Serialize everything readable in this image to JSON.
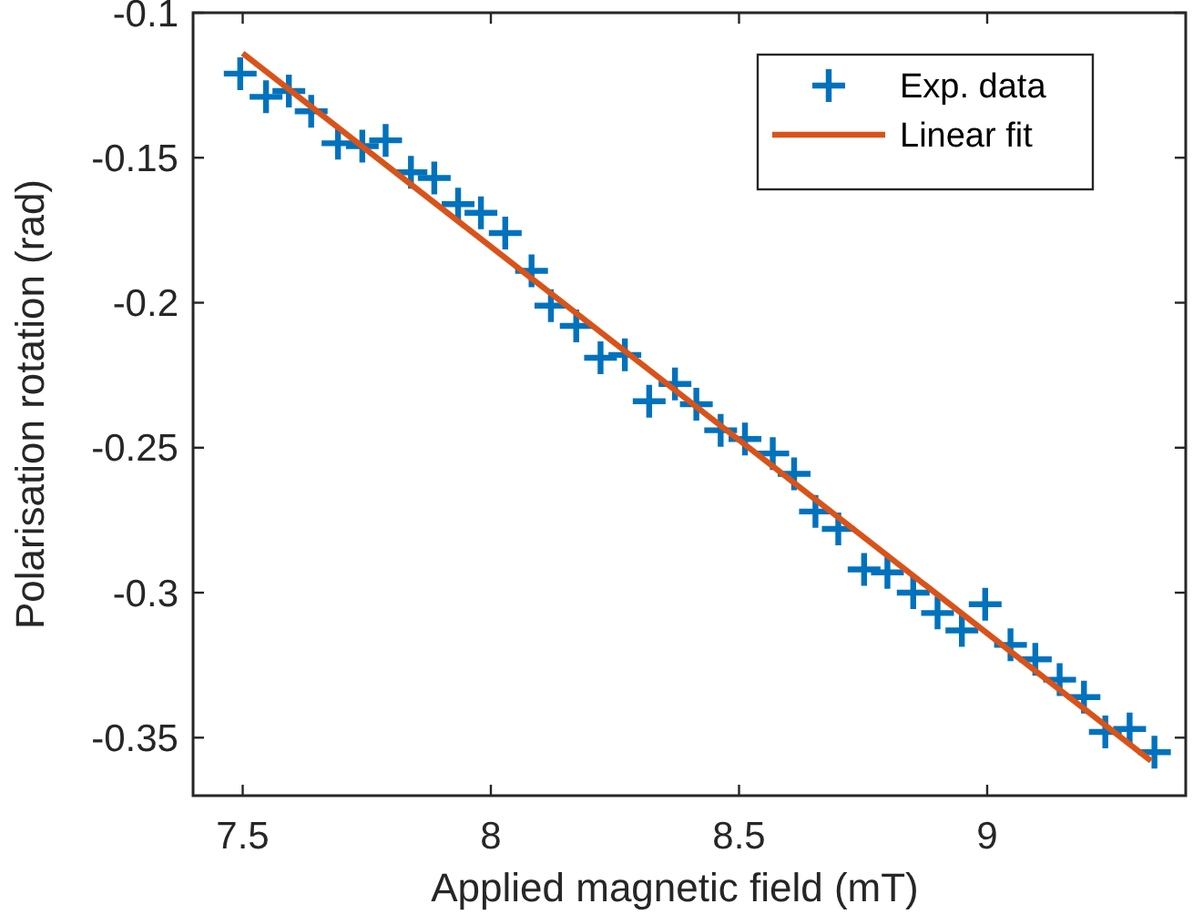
{
  "chart_data": {
    "type": "scatter",
    "xlabel": "Applied magnetic field (mT)",
    "ylabel": "Polarisation rotation (rad)",
    "xlim": [
      7.4,
      9.4
    ],
    "xticks": [
      7.5,
      8,
      8.5,
      9
    ],
    "ylim": [
      -0.37,
      -0.1
    ],
    "yticks": [
      -0.35,
      -0.3,
      -0.25,
      -0.2,
      -0.15,
      -0.1
    ],
    "marker": "cross",
    "grid": false,
    "legend": "top right",
    "series": [
      {
        "name": "Exp. data",
        "color": "#0072bd",
        "x": [
          7.495,
          7.547,
          7.593,
          7.638,
          7.692,
          7.741,
          7.788,
          7.839,
          7.886,
          7.934,
          7.98,
          8.029,
          8.082,
          8.121,
          8.172,
          8.221,
          8.27,
          8.319,
          8.371,
          8.414,
          8.463,
          8.512,
          8.568,
          8.611,
          8.654,
          8.7,
          8.752,
          8.799,
          8.851,
          8.9,
          8.949,
          8.996,
          9.047,
          9.097,
          9.146,
          9.195,
          9.238,
          9.287,
          9.337
        ],
        "values": [
          -0.121,
          -0.129,
          -0.127,
          -0.134,
          -0.145,
          -0.146,
          -0.144,
          -0.155,
          -0.157,
          -0.166,
          -0.169,
          -0.176,
          -0.189,
          -0.201,
          -0.208,
          -0.219,
          -0.218,
          -0.234,
          -0.228,
          -0.235,
          -0.244,
          -0.247,
          -0.252,
          -0.259,
          -0.272,
          -0.278,
          -0.292,
          -0.293,
          -0.3,
          -0.307,
          -0.313,
          -0.304,
          -0.318,
          -0.323,
          -0.33,
          -0.336,
          -0.348,
          -0.347,
          -0.355
        ]
      },
      {
        "name": "Linear fit",
        "type": "line",
        "color": "#d95319",
        "marker": "none",
        "line_style": "solid",
        "x": [
          7.5,
          9.33
        ],
        "values": [
          -0.114,
          -0.358
        ]
      }
    ]
  }
}
